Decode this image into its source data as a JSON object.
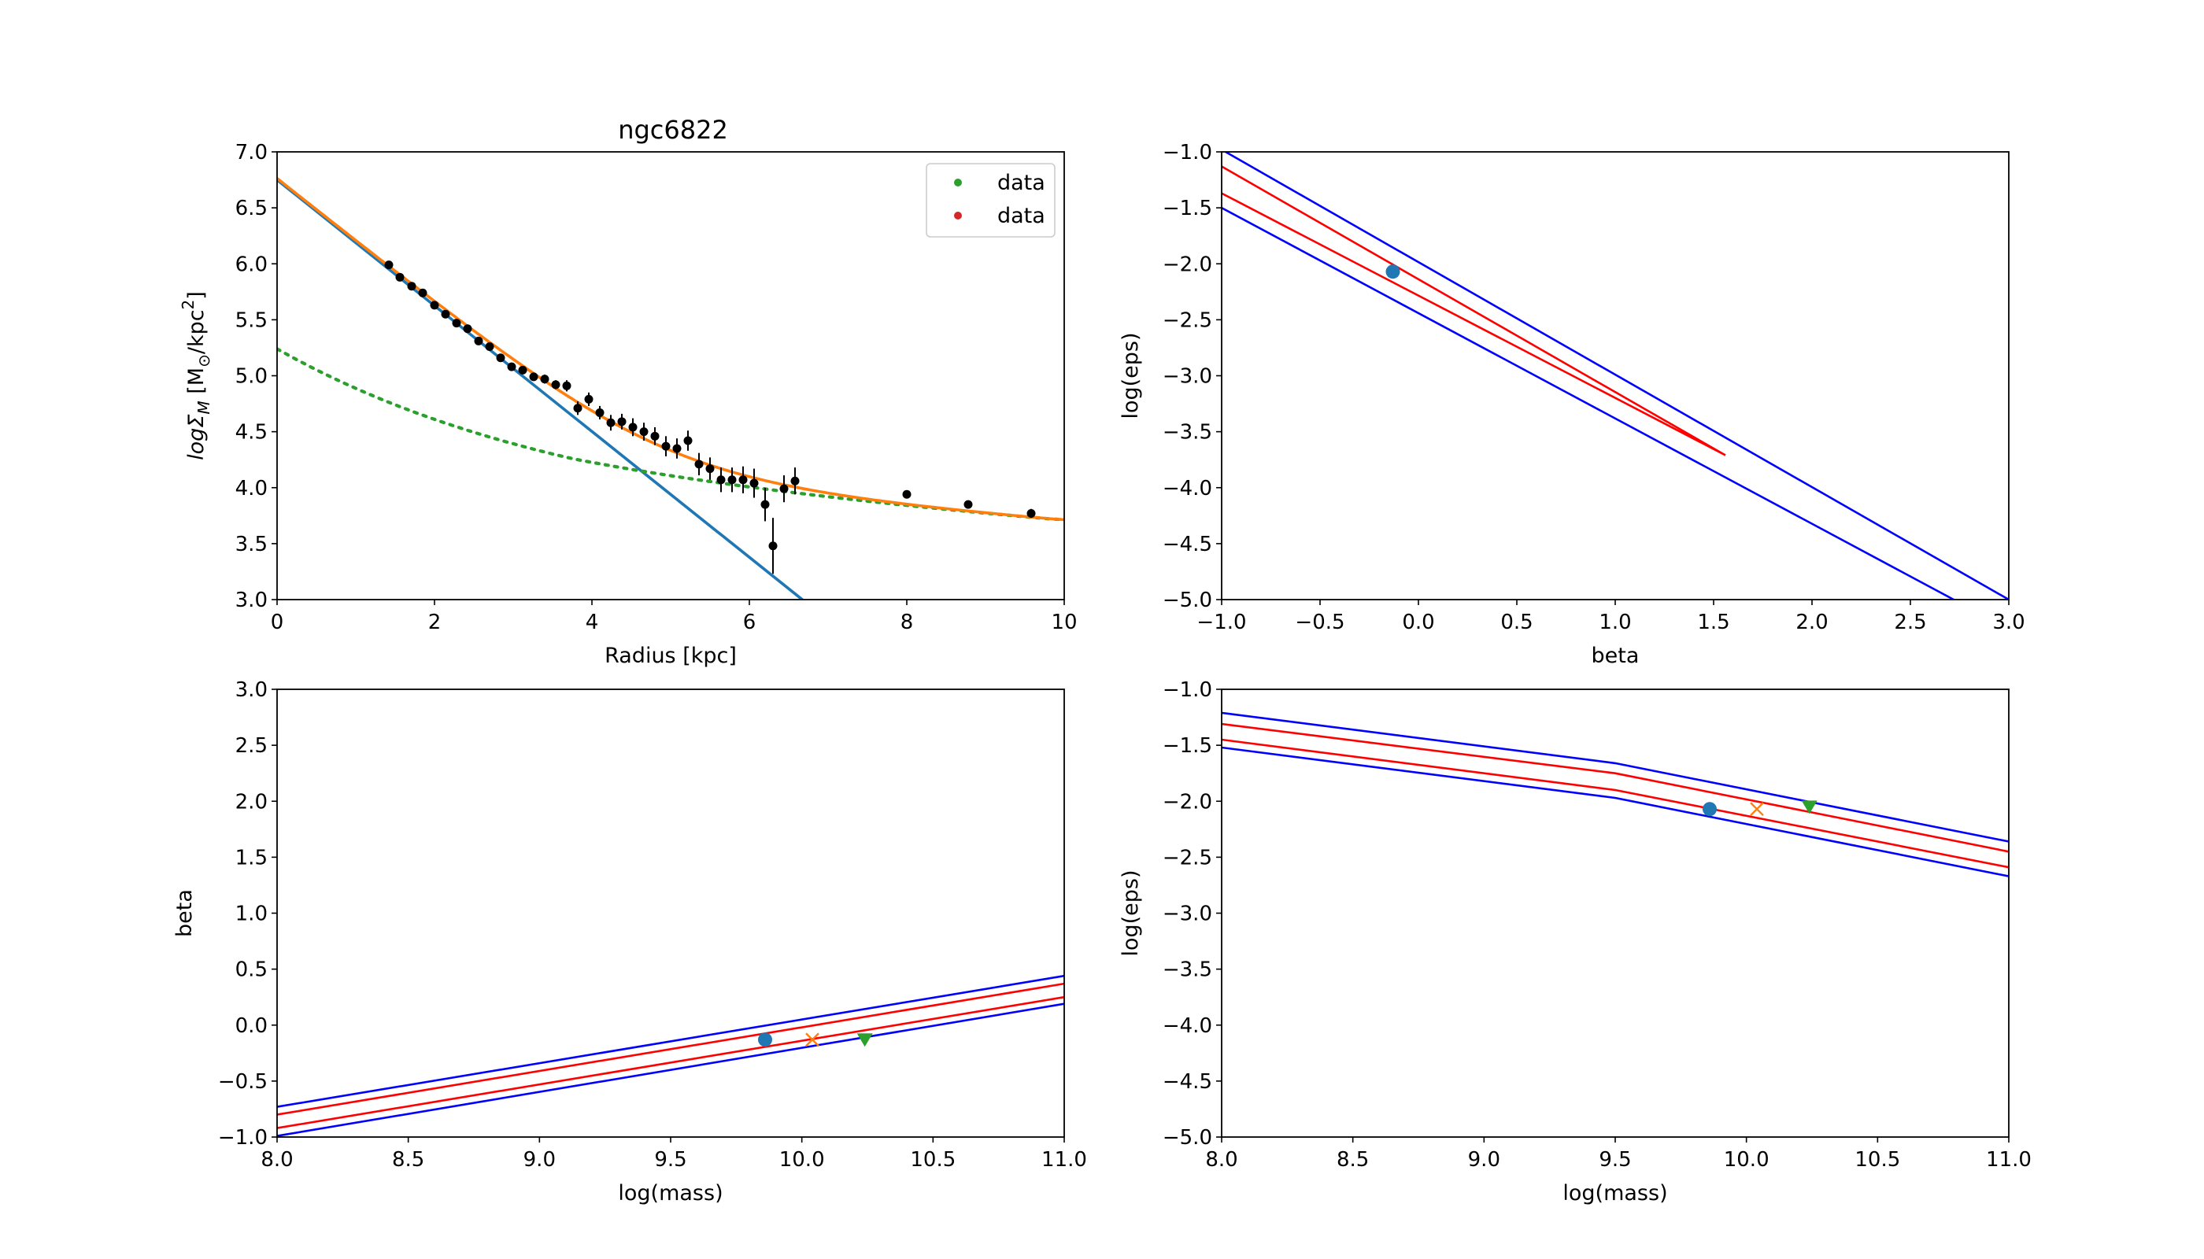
{
  "figure_title": "ngc6822",
  "chart_data": [
    {
      "id": "surface-density",
      "type": "scatter",
      "title": "ngc6822",
      "xlabel": "Radius [kpc]",
      "ylabel": "logΣ_M [M_⊙/kpc^2]",
      "xlim": [
        0,
        10
      ],
      "ylim": [
        3.0,
        7.0
      ],
      "xticks": [
        "0",
        "2",
        "4",
        "6",
        "8",
        "10"
      ],
      "yticks": [
        "3.0",
        "3.5",
        "4.0",
        "4.5",
        "5.0",
        "5.5",
        "6.0",
        "6.5",
        "7.0"
      ],
      "legend": {
        "placement": "top-right",
        "entries": [
          {
            "label": "data",
            "color": "#2ca02c"
          },
          {
            "label": "data",
            "color": "#d62728"
          }
        ]
      },
      "points": [
        {
          "x": 1.42,
          "y": 5.99,
          "err": 0.03
        },
        {
          "x": 1.56,
          "y": 5.88,
          "err": 0.03
        },
        {
          "x": 1.71,
          "y": 5.8,
          "err": 0.03
        },
        {
          "x": 1.85,
          "y": 5.74,
          "err": 0.03
        },
        {
          "x": 2.0,
          "y": 5.63,
          "err": 0.03
        },
        {
          "x": 2.14,
          "y": 5.55,
          "err": 0.03
        },
        {
          "x": 2.28,
          "y": 5.47,
          "err": 0.03
        },
        {
          "x": 2.42,
          "y": 5.42,
          "err": 0.03
        },
        {
          "x": 2.56,
          "y": 5.31,
          "err": 0.03
        },
        {
          "x": 2.7,
          "y": 5.26,
          "err": 0.03
        },
        {
          "x": 2.84,
          "y": 5.16,
          "err": 0.03
        },
        {
          "x": 2.98,
          "y": 5.08,
          "err": 0.03
        },
        {
          "x": 3.12,
          "y": 5.05,
          "err": 0.03
        },
        {
          "x": 3.26,
          "y": 4.99,
          "err": 0.03
        },
        {
          "x": 3.4,
          "y": 4.97,
          "err": 0.04
        },
        {
          "x": 3.54,
          "y": 4.92,
          "err": 0.04
        },
        {
          "x": 3.68,
          "y": 4.91,
          "err": 0.05
        },
        {
          "x": 3.82,
          "y": 4.71,
          "err": 0.06
        },
        {
          "x": 3.96,
          "y": 4.79,
          "err": 0.06
        },
        {
          "x": 4.1,
          "y": 4.67,
          "err": 0.06
        },
        {
          "x": 4.24,
          "y": 4.58,
          "err": 0.07
        },
        {
          "x": 4.38,
          "y": 4.59,
          "err": 0.07
        },
        {
          "x": 4.52,
          "y": 4.54,
          "err": 0.08
        },
        {
          "x": 4.66,
          "y": 4.5,
          "err": 0.08
        },
        {
          "x": 4.8,
          "y": 4.46,
          "err": 0.08
        },
        {
          "x": 4.94,
          "y": 4.37,
          "err": 0.09
        },
        {
          "x": 5.08,
          "y": 4.35,
          "err": 0.09
        },
        {
          "x": 5.22,
          "y": 4.42,
          "err": 0.09
        },
        {
          "x": 5.36,
          "y": 4.21,
          "err": 0.1
        },
        {
          "x": 5.5,
          "y": 4.17,
          "err": 0.1
        },
        {
          "x": 5.64,
          "y": 4.07,
          "err": 0.11
        },
        {
          "x": 5.78,
          "y": 4.07,
          "err": 0.11
        },
        {
          "x": 5.92,
          "y": 4.07,
          "err": 0.12
        },
        {
          "x": 6.06,
          "y": 4.04,
          "err": 0.13
        },
        {
          "x": 6.2,
          "y": 3.85,
          "err": 0.15
        },
        {
          "x": 6.3,
          "y": 3.48,
          "err": 0.25
        },
        {
          "x": 6.44,
          "y": 3.99,
          "err": 0.12
        },
        {
          "x": 6.58,
          "y": 4.06,
          "err": 0.12
        },
        {
          "x": 8.0,
          "y": 3.94,
          "err": 0.03
        },
        {
          "x": 8.78,
          "y": 3.85,
          "err": 0.03
        },
        {
          "x": 9.58,
          "y": 3.77,
          "err": 0.04
        }
      ],
      "curves": {
        "exponential_fit": {
          "color": "#1f77b4",
          "y0": 6.75,
          "slope": -0.562
        },
        "dm_profile": {
          "color": "#2ca02c",
          "style": "dotted",
          "y0": 5.24,
          "a": 0.168
        },
        "total": {
          "color": "#ff7f0e"
        }
      }
    },
    {
      "id": "beta-vs-logeps",
      "type": "line",
      "xlabel": "beta",
      "ylabel": "log(eps)",
      "xlim": [
        -1.0,
        3.0
      ],
      "ylim": [
        -5.0,
        -1.0
      ],
      "xticks": [
        "−1.0",
        "−0.5",
        "0.0",
        "0.5",
        "1.0",
        "1.5",
        "2.0",
        "2.5",
        "3.0"
      ],
      "yticks": [
        "−5.0",
        "−4.5",
        "−4.0",
        "−3.5",
        "−3.0",
        "−2.5",
        "−2.0",
        "−1.5",
        "−1.0"
      ],
      "blue_lines": [
        [
          [
            -0.98,
            -1.0
          ],
          [
            3.0,
            -5.0
          ]
        ],
        [
          [
            -1.0,
            -1.5
          ],
          [
            2.72,
            -5.0
          ]
        ]
      ],
      "red_contour": {
        "upper": [
          [
            -1.0,
            -1.13
          ],
          [
            1.56,
            -3.71
          ]
        ],
        "lower": [
          [
            -1.0,
            -1.37
          ],
          [
            1.56,
            -3.71
          ]
        ]
      },
      "markers": [
        {
          "x": -0.13,
          "y": -2.07,
          "symbol": "circle",
          "color": "#1f77b4"
        }
      ]
    },
    {
      "id": "logmass-vs-beta",
      "type": "line",
      "xlabel": "log(mass)",
      "ylabel": "beta",
      "xlim": [
        8.0,
        11.0
      ],
      "ylim": [
        -1.0,
        3.0
      ],
      "xticks": [
        "8.0",
        "8.5",
        "9.0",
        "9.5",
        "10.0",
        "10.5",
        "11.0"
      ],
      "yticks": [
        "−1.0",
        "−0.5",
        "0.0",
        "0.5",
        "1.0",
        "1.5",
        "2.0",
        "2.5",
        "3.0"
      ],
      "blue_lines": [
        [
          [
            8.0,
            -0.73
          ],
          [
            11.0,
            0.44
          ]
        ],
        [
          [
            8.0,
            -0.99
          ],
          [
            11.0,
            0.19
          ]
        ]
      ],
      "red_lines": [
        [
          [
            8.0,
            -0.8
          ],
          [
            11.0,
            0.37
          ]
        ],
        [
          [
            8.0,
            -0.92
          ],
          [
            11.0,
            0.25
          ]
        ]
      ],
      "markers": [
        {
          "x": 9.86,
          "y": -0.13,
          "symbol": "circle",
          "color": "#1f77b4"
        },
        {
          "x": 10.04,
          "y": -0.13,
          "symbol": "x",
          "color": "#ff7f0e"
        },
        {
          "x": 10.24,
          "y": -0.13,
          "symbol": "triangle-down",
          "color": "#2ca02c"
        }
      ]
    },
    {
      "id": "logmass-vs-logeps",
      "type": "line",
      "xlabel": "log(mass)",
      "ylabel": "log(eps)",
      "xlim": [
        8.0,
        11.0
      ],
      "ylim": [
        -5.0,
        -1.0
      ],
      "xticks": [
        "8.0",
        "8.5",
        "9.0",
        "9.5",
        "10.0",
        "10.5",
        "11.0"
      ],
      "yticks": [
        "−5.0",
        "−4.5",
        "−4.0",
        "−3.5",
        "−3.0",
        "−2.5",
        "−2.0",
        "−1.5",
        "−1.0"
      ],
      "blue_lines": [
        [
          [
            8.0,
            -1.21
          ],
          [
            9.5,
            -1.66
          ],
          [
            11.0,
            -2.36
          ]
        ],
        [
          [
            8.0,
            -1.52
          ],
          [
            9.5,
            -1.97
          ],
          [
            11.0,
            -2.67
          ]
        ]
      ],
      "red_lines": [
        [
          [
            8.0,
            -1.31
          ],
          [
            9.5,
            -1.75
          ],
          [
            11.0,
            -2.45
          ]
        ],
        [
          [
            8.0,
            -1.45
          ],
          [
            9.5,
            -1.9
          ],
          [
            11.0,
            -2.59
          ]
        ]
      ],
      "markers": [
        {
          "x": 9.86,
          "y": -2.07,
          "symbol": "circle",
          "color": "#1f77b4"
        },
        {
          "x": 10.04,
          "y": -2.07,
          "symbol": "x",
          "color": "#ff7f0e"
        },
        {
          "x": 10.24,
          "y": -2.05,
          "symbol": "triangle-down",
          "color": "#2ca02c"
        }
      ]
    }
  ]
}
